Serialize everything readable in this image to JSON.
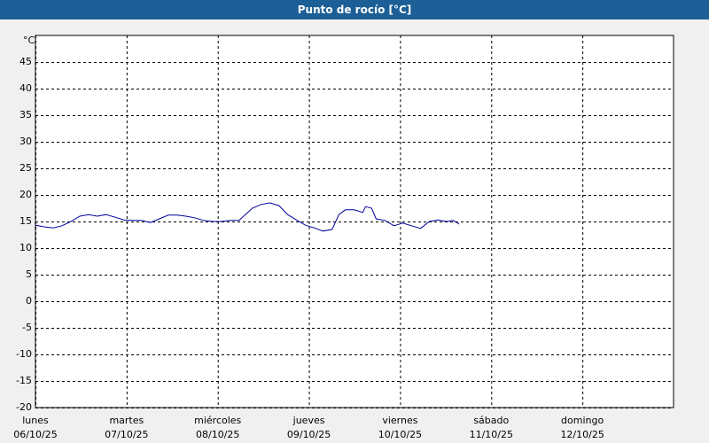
{
  "chart_data": {
    "type": "line",
    "title": "Punto de rocío [°C]",
    "y_unit": "°C",
    "xlim": [
      0,
      168
    ],
    "xticks": [
      {
        "value": 0,
        "label": "lunes"
      },
      {
        "value": 24,
        "label": "martes"
      },
      {
        "value": 48,
        "label": "miércoles"
      },
      {
        "value": 72,
        "label": "jueves"
      },
      {
        "value": 96,
        "label": "viernes"
      },
      {
        "value": 120,
        "label": "sábado"
      },
      {
        "value": 144,
        "label": "domingo"
      }
    ],
    "xtick_dates": [
      "06/10/25",
      "07/10/25",
      "08/10/25",
      "09/10/25",
      "10/10/25",
      "11/10/25",
      "12/10/25"
    ],
    "ylim": [
      -20,
      50
    ],
    "yticks": [
      -20,
      -15,
      -10,
      -5,
      0,
      5,
      10,
      15,
      20,
      25,
      30,
      35,
      40,
      45
    ],
    "grid": true,
    "series": [
      {
        "color": "#00009c",
        "x": [
          0,
          2.3,
          4.7,
          7.0,
          9.3,
          11.7,
          14.0,
          16.3,
          18.6,
          21.0,
          23.3,
          25.6,
          28.0,
          30.3,
          32.6,
          35.0,
          37.3,
          39.6,
          41.9,
          44.3,
          46.6,
          48.9,
          51.3,
          53.6,
          55.9,
          57.1,
          59.4,
          61.7,
          64.1,
          66.4,
          68.7,
          71.1,
          73.4,
          75.7,
          78.1,
          79.9,
          81.6,
          83.9,
          86.2,
          86.9,
          88.5,
          89.7,
          92.0,
          94.4,
          96.7,
          99.0,
          101.4,
          103.7,
          106.0,
          108.3,
          110.0,
          111.6
        ],
        "values": [
          14.3,
          14.0,
          13.8,
          14.2,
          15.0,
          16.0,
          16.3,
          16.0,
          16.3,
          15.8,
          15.3,
          15.2,
          15.2,
          14.8,
          15.5,
          16.2,
          16.2,
          16.0,
          15.7,
          15.2,
          15.0,
          15.0,
          15.2,
          15.2,
          16.7,
          17.5,
          18.2,
          18.5,
          18.0,
          16.3,
          15.3,
          14.3,
          13.8,
          13.2,
          13.5,
          16.3,
          17.2,
          17.2,
          16.7,
          17.8,
          17.5,
          15.5,
          15.2,
          14.2,
          14.7,
          14.2,
          13.7,
          15.0,
          15.3,
          15.0,
          15.2,
          14.5
        ]
      }
    ]
  }
}
